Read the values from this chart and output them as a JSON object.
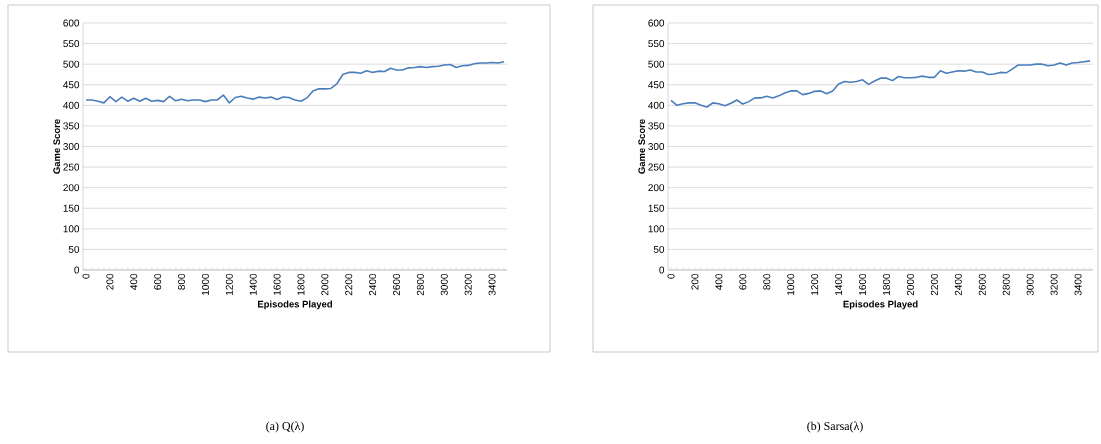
{
  "chart_data": [
    {
      "type": "line",
      "title": "(a) Q(λ)",
      "xlabel": "Episodes Played",
      "ylabel": "Game Score",
      "categories": [
        "0",
        null,
        null,
        null,
        "200",
        null,
        null,
        null,
        "400",
        null,
        null,
        null,
        "600",
        null,
        null,
        null,
        "800",
        null,
        null,
        null,
        "1000",
        null,
        null,
        null,
        "1200",
        null,
        null,
        null,
        "1400",
        null,
        null,
        null,
        "1600",
        null,
        null,
        null,
        "1800",
        null,
        null,
        null,
        "2000",
        null,
        null,
        null,
        "2200",
        null,
        null,
        null,
        "2400",
        null,
        null,
        null,
        "2600",
        null,
        null,
        null,
        "2800",
        null,
        null,
        null,
        "3000",
        null,
        null,
        null,
        "3200",
        null,
        null,
        null,
        "3400",
        null,
        null
      ],
      "series": [
        {
          "color": "#4a7ebb",
          "values": [
            413,
            413,
            410,
            406,
            421,
            409,
            420,
            410,
            417,
            410,
            417,
            410,
            412,
            409,
            422,
            411,
            415,
            411,
            413,
            413,
            409,
            413,
            413,
            425,
            406,
            419,
            422,
            418,
            415,
            420,
            418,
            420,
            414,
            420,
            419,
            413,
            410,
            418,
            435,
            440,
            440,
            441,
            452,
            475,
            480,
            480,
            478,
            484,
            480,
            483,
            482,
            490,
            486,
            486,
            491,
            492,
            494,
            492,
            494,
            495,
            498,
            499,
            492,
            496,
            497,
            501,
            503,
            503,
            504,
            503,
            506
          ]
        }
      ],
      "ylim": [
        0,
        600
      ],
      "yticks": [
        0,
        50,
        100,
        150,
        200,
        250,
        300,
        350,
        400,
        450,
        500,
        550,
        600
      ],
      "grid": "y"
    },
    {
      "type": "line",
      "title": "(b) Sarsa(λ)",
      "xlabel": "Episodes Played",
      "ylabel": "Game Score",
      "categories": [
        "0",
        null,
        null,
        null,
        "200",
        null,
        null,
        null,
        "400",
        null,
        null,
        null,
        "600",
        null,
        null,
        null,
        "800",
        null,
        null,
        null,
        "1000",
        null,
        null,
        null,
        "1200",
        null,
        null,
        null,
        "1400",
        null,
        null,
        null,
        "1600",
        null,
        null,
        null,
        "1800",
        null,
        null,
        null,
        "2000",
        null,
        null,
        null,
        "2200",
        null,
        null,
        null,
        "2400",
        null,
        null,
        null,
        "2600",
        null,
        null,
        null,
        "2800",
        null,
        null,
        null,
        "3000",
        null,
        null,
        null,
        "3200",
        null,
        null,
        null,
        "3400",
        null,
        null
      ],
      "series": [
        {
          "color": "#4a7ebb",
          "values": [
            412,
            400,
            404,
            406,
            406,
            400,
            396,
            406,
            404,
            399,
            405,
            413,
            403,
            409,
            418,
            418,
            422,
            418,
            423,
            430,
            435,
            435,
            426,
            429,
            434,
            435,
            428,
            435,
            452,
            458,
            456,
            458,
            462,
            451,
            459,
            466,
            466,
            460,
            470,
            467,
            467,
            468,
            471,
            468,
            468,
            484,
            478,
            481,
            484,
            483,
            486,
            481,
            481,
            475,
            476,
            480,
            479,
            488,
            498,
            498,
            498,
            500,
            500,
            496,
            498,
            503,
            498,
            503,
            504,
            506,
            508
          ]
        }
      ],
      "ylim": [
        0,
        600
      ],
      "yticks": [
        0,
        50,
        100,
        150,
        200,
        250,
        300,
        350,
        400,
        450,
        500,
        550,
        600
      ],
      "grid": "y"
    }
  ]
}
